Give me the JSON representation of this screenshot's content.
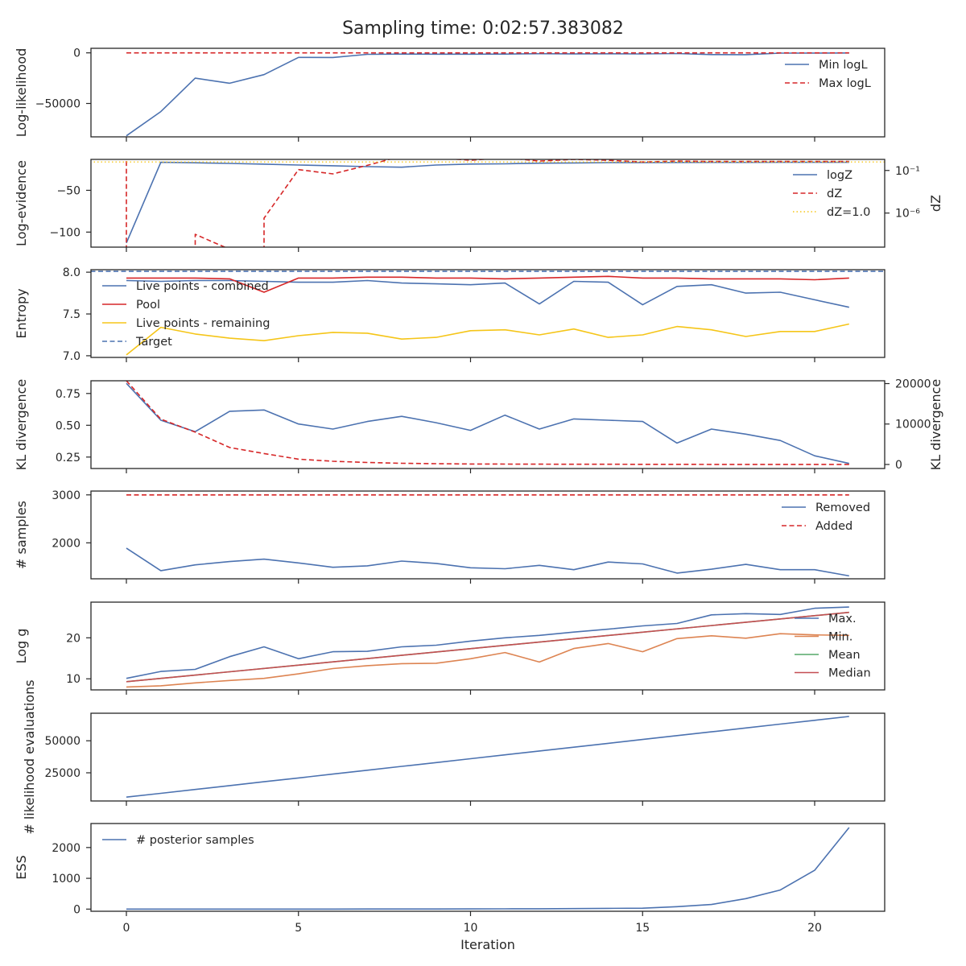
{
  "title": "Sampling time: 0:02:57.383082",
  "xlabel": "Iteration",
  "x_ticks": [
    0,
    5,
    10,
    15,
    20
  ],
  "colors": {
    "blue": "#4c72b0",
    "red": "#d62728",
    "dark_red": "#c44e52",
    "yellow": "#f5c518",
    "orange": "#dd8452",
    "green": "#55a868"
  },
  "chart_data": [
    {
      "id": "p1",
      "type": "line",
      "ylabel": "Log-likelihood",
      "ylim": [
        -83000,
        4500
      ],
      "yticks": [
        {
          "v": 0,
          "label": "0"
        },
        {
          "v": -50000,
          "label": "−50000"
        }
      ],
      "legend_loc": "upper right",
      "series": [
        {
          "name": "Min logL",
          "color": "blue",
          "dash": false,
          "x": [
            0,
            1,
            2,
            3,
            4,
            5,
            6,
            7,
            8,
            9,
            10,
            11,
            12,
            13,
            14,
            15,
            16,
            17,
            18,
            19,
            20,
            21
          ],
          "values": [
            -82000,
            -58000,
            -25000,
            -30000,
            -21500,
            -4500,
            -4600,
            -1500,
            -1200,
            -1300,
            -1300,
            -1200,
            -800,
            -1000,
            -900,
            -1100,
            -700,
            -1700,
            -1800,
            -300,
            -200,
            -100
          ]
        },
        {
          "name": "Max logL",
          "color": "red",
          "dash": true,
          "x": [
            0,
            1,
            2,
            3,
            4,
            5,
            6,
            7,
            8,
            9,
            10,
            11,
            12,
            13,
            14,
            15,
            16,
            17,
            18,
            19,
            20,
            21
          ],
          "values": [
            0,
            0,
            0,
            0,
            0,
            0,
            0,
            0,
            0,
            0,
            0,
            0,
            0,
            0,
            0,
            0,
            0,
            0,
            0,
            0,
            0,
            0
          ]
        }
      ]
    },
    {
      "id": "p2",
      "type": "line",
      "ylabel": "Log-evidence",
      "ylim": [
        -118,
        -13
      ],
      "yticks": [
        {
          "v": -50,
          "label": "−50"
        },
        {
          "v": -100,
          "label": "−100"
        }
      ],
      "right_ylabel": "dZ",
      "right_ylim": [
        -10,
        0.3
      ],
      "right_scale": "log10",
      "right_yticks": [
        {
          "v": -1,
          "label": "10⁻¹"
        },
        {
          "v": -6,
          "label": "10⁻⁶"
        }
      ],
      "legend_loc": "upper right",
      "series": [
        {
          "name": "logZ",
          "color": "blue",
          "dash": false,
          "axis": "left",
          "x": [
            0,
            1,
            2,
            3,
            4,
            5,
            6,
            7,
            8,
            9,
            10,
            11,
            12,
            13,
            14,
            15,
            16,
            17,
            18,
            19,
            20,
            21
          ],
          "values": [
            -113,
            -16.5,
            -17,
            -17.8,
            -18.7,
            -19.7,
            -20.6,
            -21.7,
            -22.3,
            -19.7,
            -18.6,
            -18.3,
            -17.5,
            -17.2,
            -16.9,
            -16.8,
            -16.7,
            -16.6,
            -16.6,
            -16.5,
            -16.5,
            -16.5
          ]
        },
        {
          "name": "dZ",
          "color": "red",
          "dash": true,
          "axis": "right",
          "x": [
            0,
            0,
            1,
            2,
            2,
            4,
            4,
            5,
            6,
            7,
            8,
            9,
            10,
            11,
            12,
            13,
            14,
            15,
            16,
            17,
            18,
            19,
            20,
            21
          ],
          "values": [
            0.1,
            -12,
            -12,
            -12,
            -8.5,
            -12,
            -6.6,
            -0.9,
            -1.4,
            -0.4,
            0.7,
            0.5,
            0.2,
            0.5,
            0.1,
            0.3,
            0.2,
            0.0,
            0.1,
            0.05,
            0.05,
            0.05,
            0.05,
            0.05
          ]
        },
        {
          "name": "dZ=1.0",
          "color": "yellow",
          "dotted": true,
          "axis": "right",
          "hline": 0
        }
      ]
    },
    {
      "id": "p3",
      "type": "line",
      "ylabel": "Entropy",
      "ylim": [
        6.98,
        8.03
      ],
      "yticks": [
        {
          "v": 8.0,
          "label": "8.0"
        },
        {
          "v": 7.5,
          "label": "7.5"
        },
        {
          "v": 7.0,
          "label": "7.0"
        }
      ],
      "legend_loc": "upper left",
      "series": [
        {
          "name": "Live points - combined",
          "color": "blue",
          "dash": false,
          "x": [
            0,
            1,
            2,
            3,
            4,
            5,
            6,
            7,
            8,
            9,
            10,
            11,
            12,
            13,
            14,
            15,
            16,
            17,
            18,
            19,
            20,
            21
          ],
          "values": [
            7.9,
            7.89,
            7.9,
            7.9,
            7.89,
            7.88,
            7.88,
            7.9,
            7.87,
            7.86,
            7.85,
            7.87,
            7.62,
            7.89,
            7.88,
            7.61,
            7.83,
            7.85,
            7.75,
            7.76,
            7.67,
            7.58
          ]
        },
        {
          "name": "Pool",
          "color": "red",
          "dash": false,
          "x": [
            0,
            1,
            2,
            3,
            4,
            5,
            6,
            7,
            8,
            9,
            10,
            11,
            12,
            13,
            14,
            15,
            16,
            17,
            18,
            19,
            20,
            21
          ],
          "values": [
            7.93,
            7.93,
            7.93,
            7.92,
            7.76,
            7.93,
            7.93,
            7.94,
            7.94,
            7.93,
            7.93,
            7.92,
            7.93,
            7.94,
            7.95,
            7.93,
            7.93,
            7.92,
            7.92,
            7.92,
            7.91,
            7.93
          ]
        },
        {
          "name": "Live points - remaining",
          "color": "yellow",
          "dash": false,
          "x": [
            0,
            1,
            2,
            3,
            4,
            5,
            6,
            7,
            8,
            9,
            10,
            11,
            12,
            13,
            14,
            15,
            16,
            17,
            18,
            19,
            20,
            21
          ],
          "values": [
            7.01,
            7.34,
            7.26,
            7.21,
            7.18,
            7.24,
            7.28,
            7.27,
            7.2,
            7.22,
            7.3,
            7.31,
            7.25,
            7.32,
            7.22,
            7.25,
            7.35,
            7.31,
            7.23,
            7.29,
            7.29,
            7.38
          ]
        },
        {
          "name": "Target",
          "color": "blue",
          "dash": true,
          "hline": 8.01
        }
      ]
    },
    {
      "id": "p4",
      "type": "line",
      "ylabel": "KL divergence",
      "ylim": [
        0.16,
        0.85
      ],
      "yticks": [
        {
          "v": 0.75,
          "label": "0.75"
        },
        {
          "v": 0.5,
          "label": "0.50"
        },
        {
          "v": 0.25,
          "label": "0.25"
        }
      ],
      "right_ylabel": "KL divergence",
      "right_ylim": [
        -1000,
        20700
      ],
      "right_yticks": [
        {
          "v": 20000,
          "label": "20000"
        },
        {
          "v": 10000,
          "label": "10000"
        },
        {
          "v": 0,
          "label": "0"
        }
      ],
      "series": [
        {
          "name": "KL divergence (left)",
          "color": "blue",
          "dash": false,
          "axis": "left",
          "x": [
            0,
            1,
            2,
            3,
            4,
            5,
            6,
            7,
            8,
            9,
            10,
            11,
            12,
            13,
            14,
            15,
            16,
            17,
            18,
            19,
            20,
            21
          ],
          "values": [
            0.83,
            0.54,
            0.45,
            0.61,
            0.62,
            0.51,
            0.47,
            0.53,
            0.57,
            0.52,
            0.46,
            0.58,
            0.47,
            0.55,
            0.54,
            0.53,
            0.36,
            0.47,
            0.43,
            0.38,
            0.26,
            0.2
          ]
        },
        {
          "name": "KL divergence (right)",
          "color": "red",
          "dash": true,
          "axis": "right",
          "x": [
            0,
            1,
            2,
            3,
            4,
            5,
            6,
            7,
            8,
            9,
            10,
            11,
            12,
            13,
            14,
            15,
            16,
            17,
            18,
            19,
            20,
            21
          ],
          "values": [
            20700,
            11200,
            8000,
            4200,
            2700,
            1300,
            800,
            500,
            300,
            200,
            120,
            100,
            80,
            60,
            50,
            40,
            30,
            25,
            20,
            15,
            10,
            10
          ]
        }
      ]
    },
    {
      "id": "p5",
      "type": "line",
      "ylabel": "# samples",
      "ylim": [
        1250,
        3080
      ],
      "yticks": [
        {
          "v": 3000,
          "label": "3000"
        },
        {
          "v": 2000,
          "label": "2000"
        }
      ],
      "legend_loc": "upper right",
      "series": [
        {
          "name": "Removed",
          "color": "blue",
          "dash": false,
          "x": [
            0,
            1,
            2,
            3,
            4,
            5,
            6,
            7,
            8,
            9,
            10,
            11,
            12,
            13,
            14,
            15,
            16,
            17,
            18,
            19,
            20,
            21
          ],
          "values": [
            1890,
            1420,
            1540,
            1610,
            1660,
            1580,
            1490,
            1520,
            1620,
            1570,
            1480,
            1460,
            1530,
            1440,
            1600,
            1560,
            1370,
            1450,
            1550,
            1440,
            1440,
            1310
          ]
        },
        {
          "name": "Added",
          "color": "red",
          "dash": true,
          "x": [
            0,
            1,
            2,
            3,
            4,
            5,
            6,
            7,
            8,
            9,
            10,
            11,
            12,
            13,
            14,
            15,
            16,
            17,
            18,
            19,
            20,
            21
          ],
          "values": [
            3000,
            3000,
            3000,
            3000,
            3000,
            3000,
            3000,
            3000,
            3000,
            3000,
            3000,
            3000,
            3000,
            3000,
            3000,
            3000,
            3000,
            3000,
            3000,
            3000,
            3000,
            3000
          ]
        }
      ]
    },
    {
      "id": "p6",
      "type": "line",
      "ylabel": "Log g",
      "ylim": [
        7.3,
        28.7
      ],
      "yticks": [
        {
          "v": 20,
          "label": "20"
        },
        {
          "v": 10,
          "label": "10"
        }
      ],
      "legend_loc": "center right",
      "series": [
        {
          "name": "Max.",
          "color": "blue",
          "dash": false,
          "x": [
            0,
            1,
            2,
            3,
            4,
            5,
            6,
            7,
            8,
            9,
            10,
            11,
            12,
            13,
            14,
            15,
            16,
            17,
            18,
            19,
            20,
            21
          ],
          "values": [
            10.1,
            11.8,
            12.3,
            15.4,
            17.8,
            14.9,
            16.6,
            16.7,
            17.8,
            18.2,
            19.2,
            20.0,
            20.6,
            21.4,
            22.1,
            22.9,
            23.5,
            25.6,
            25.9,
            25.7,
            27.2,
            27.5
          ]
        },
        {
          "name": "Min.",
          "color": "orange",
          "dash": false,
          "x": [
            0,
            1,
            2,
            3,
            4,
            5,
            6,
            7,
            8,
            9,
            10,
            11,
            12,
            13,
            14,
            15,
            16,
            17,
            18,
            19,
            20,
            21
          ],
          "values": [
            8.0,
            8.3,
            9.0,
            9.6,
            10.1,
            11.2,
            12.5,
            13.2,
            13.7,
            13.8,
            14.9,
            16.4,
            14.1,
            17.4,
            18.6,
            16.6,
            19.8,
            20.5,
            19.9,
            21.0,
            20.7,
            20.6
          ]
        },
        {
          "name": "Mean",
          "color": "green",
          "dash": false,
          "x": [
            0,
            21
          ],
          "values": [
            9.3,
            26.2
          ]
        },
        {
          "name": "Median",
          "color": "dark_red",
          "dash": false,
          "x": [
            0,
            21
          ],
          "values": [
            9.3,
            26.2
          ]
        }
      ]
    },
    {
      "id": "p7",
      "type": "line",
      "ylabel": "# likelihood evaluations",
      "ylim": [
        3000,
        71500
      ],
      "yticks": [
        {
          "v": 50000,
          "label": "50000"
        },
        {
          "v": 25000,
          "label": "25000"
        }
      ],
      "series": [
        {
          "name": "# likelihood evaluations",
          "color": "blue",
          "dash": false,
          "x": [
            0,
            1,
            2,
            3,
            4,
            5,
            6,
            7,
            8,
            9,
            10,
            11,
            12,
            13,
            14,
            15,
            16,
            17,
            18,
            19,
            20,
            21
          ],
          "values": [
            6000,
            9000,
            12000,
            15000,
            18000,
            21000,
            24000,
            27000,
            30000,
            33000,
            36000,
            39000,
            42000,
            45000,
            48000,
            51000,
            54000,
            57000,
            60000,
            63000,
            66000,
            69000
          ]
        }
      ]
    },
    {
      "id": "p8",
      "type": "line",
      "ylabel": "ESS",
      "ylim": [
        -70,
        2780
      ],
      "yticks": [
        {
          "v": 2000,
          "label": "2000"
        },
        {
          "v": 1000,
          "label": "1000"
        },
        {
          "v": 0,
          "label": "0"
        }
      ],
      "legend_loc": "upper left",
      "series": [
        {
          "name": "# posterior samples",
          "color": "blue",
          "dash": false,
          "x": [
            0,
            1,
            2,
            3,
            4,
            5,
            6,
            7,
            8,
            9,
            10,
            11,
            12,
            13,
            14,
            15,
            16,
            17,
            18,
            19,
            20,
            21
          ],
          "values": [
            0,
            0,
            0,
            0,
            0,
            1,
            1,
            2,
            3,
            4,
            6,
            8,
            10,
            15,
            25,
            30,
            80,
            150,
            340,
            620,
            1260,
            2650
          ]
        }
      ]
    }
  ]
}
